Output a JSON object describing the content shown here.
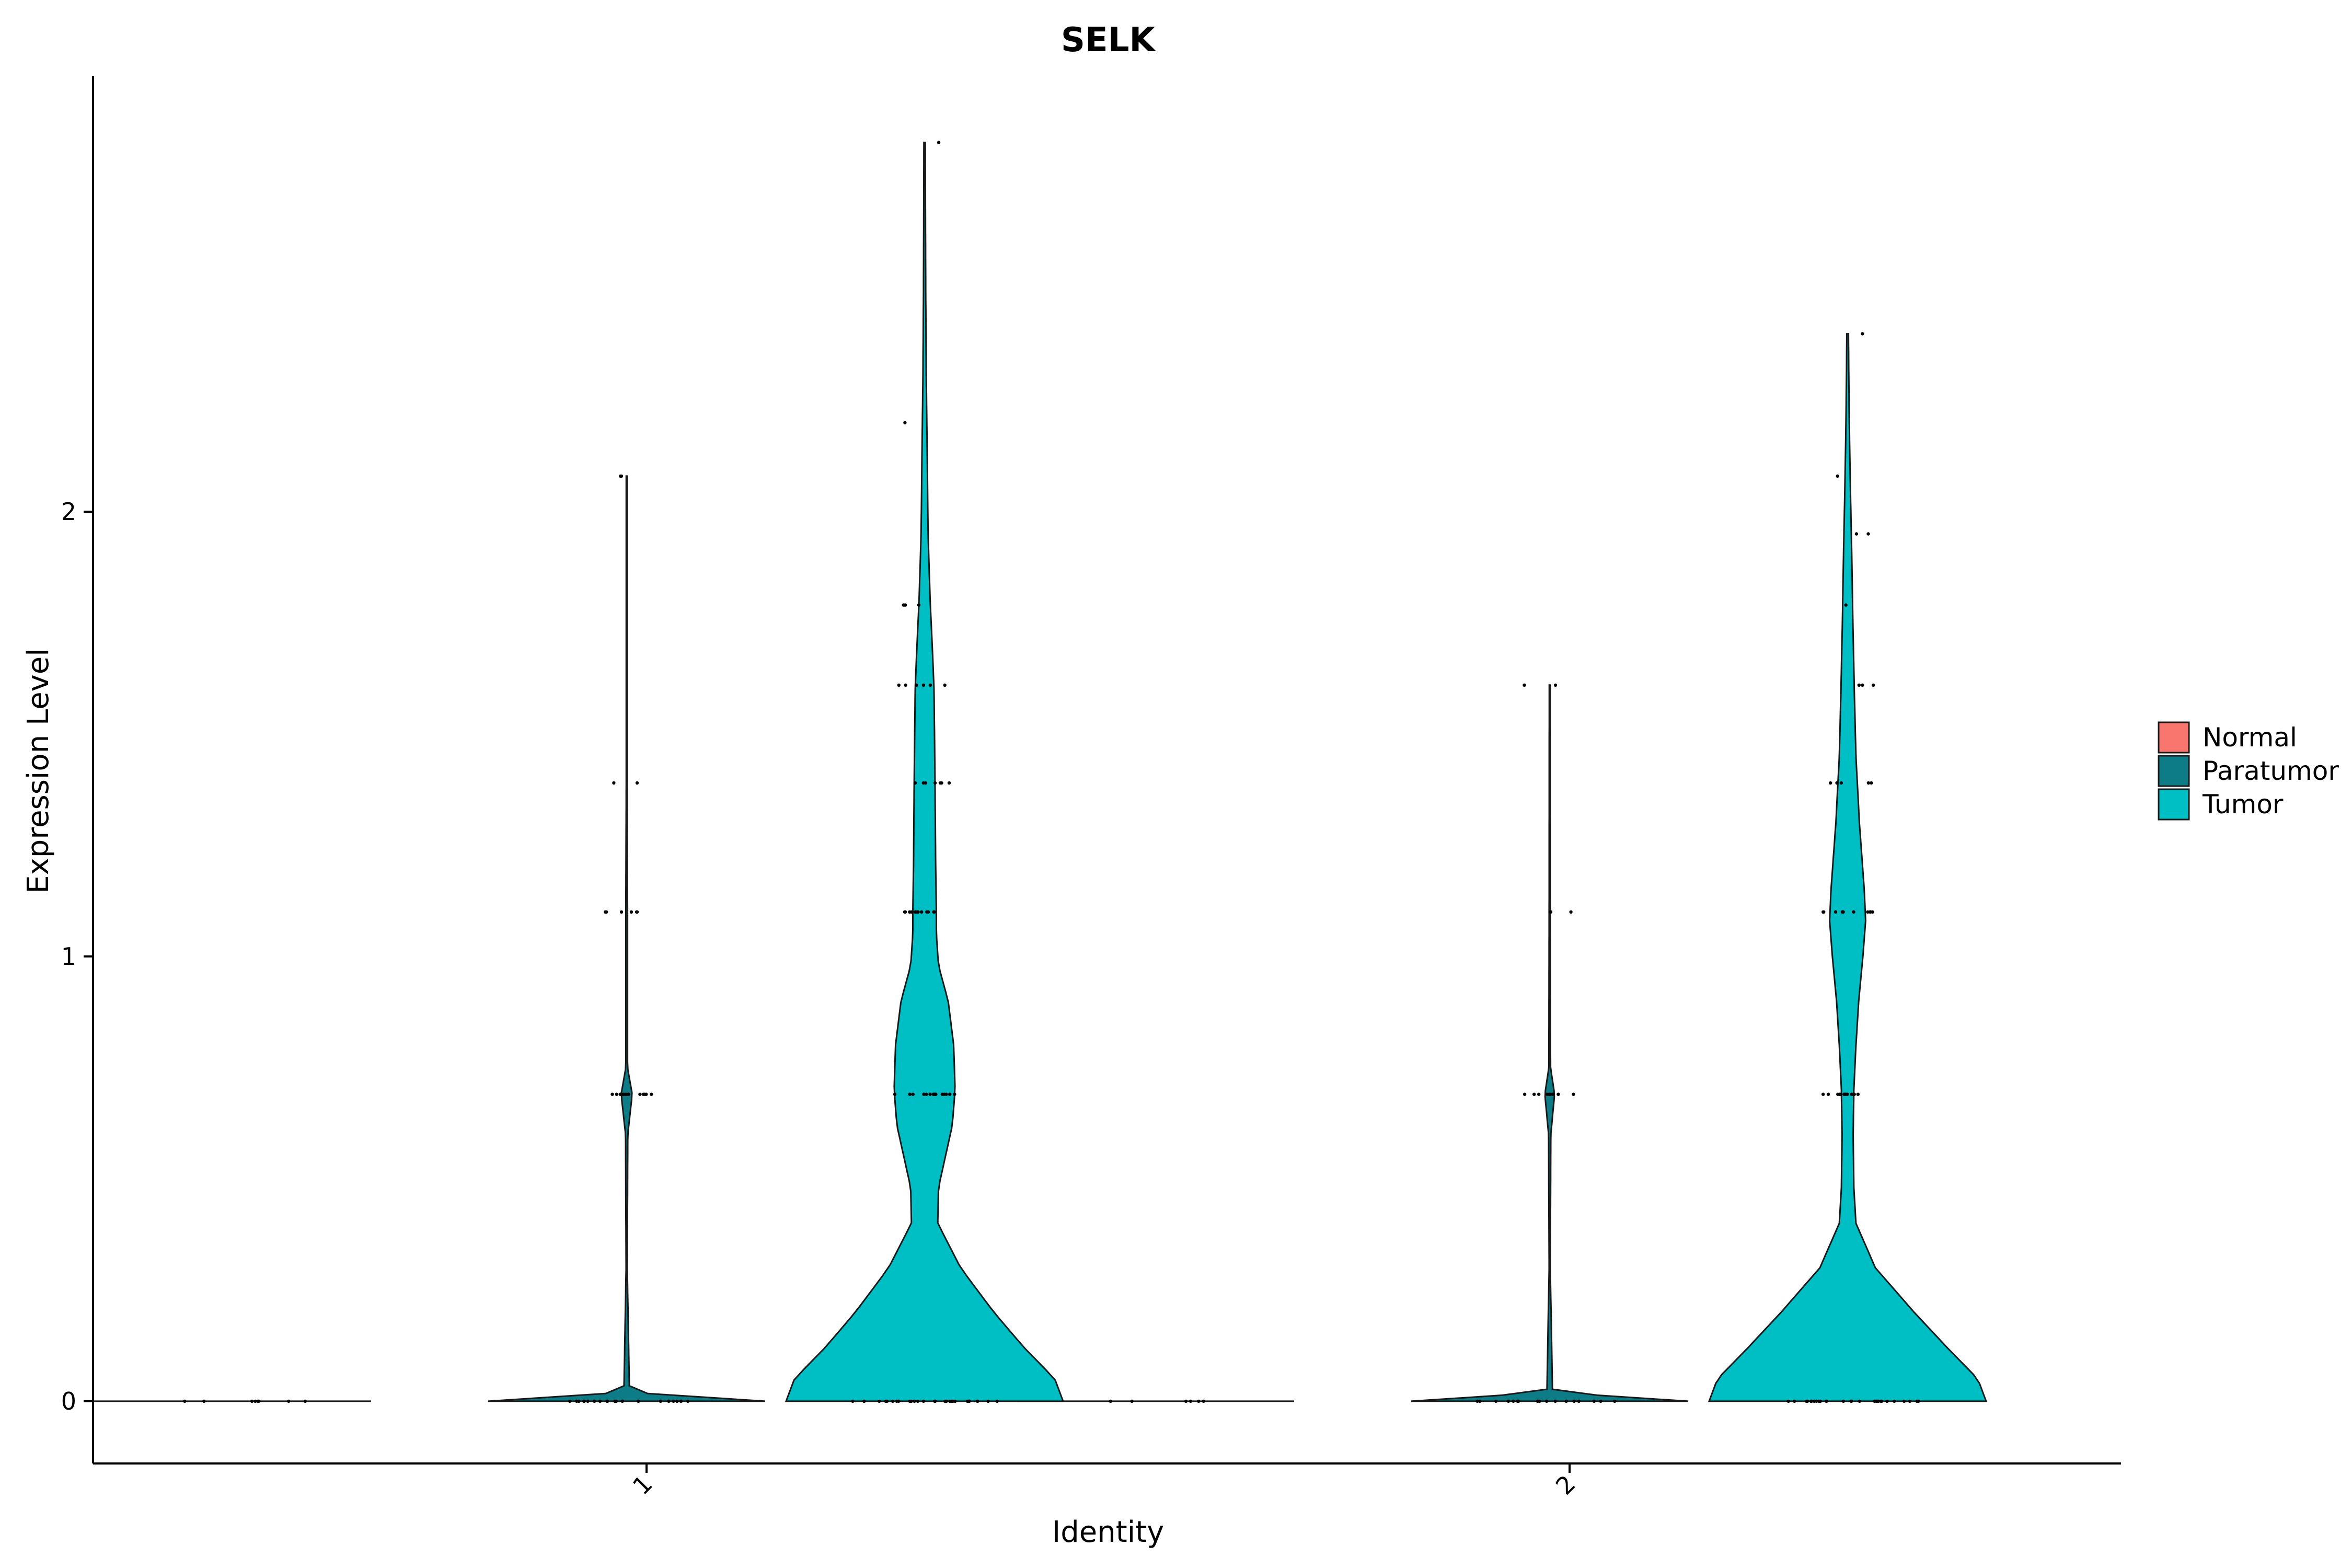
{
  "chart_data": {
    "type": "violin",
    "title": "SELK",
    "xlabel": "Identity",
    "ylabel": "Expression Level",
    "categories": [
      "1",
      "2"
    ],
    "ylim": [
      -0.14,
      2.98
    ],
    "yticks": [
      "0",
      "1",
      "2"
    ],
    "ytick_values": [
      0,
      1,
      2
    ],
    "legend_position": "right",
    "series": [
      {
        "name": "Normal",
        "color": "#F8766D",
        "groups": [
          {
            "category": "1",
            "max": 0,
            "profile": [
              [
                0,
                1.0
              ]
            ],
            "points": [
              0,
              0,
              0,
              0,
              0,
              0,
              0,
              0
            ]
          },
          {
            "category": "2",
            "max": 0,
            "profile": [
              [
                0,
                1.0
              ]
            ],
            "points": [
              0,
              0,
              0,
              0,
              0,
              0
            ]
          }
        ]
      },
      {
        "name": "Paratumor",
        "color": "#0E7C86",
        "groups": [
          {
            "category": "1",
            "max": 2.08,
            "profile": [
              [
                0,
                1.0
              ],
              [
                0.02,
                0.02
              ],
              [
                0.3,
                0.004
              ],
              [
                0.6,
                0.008
              ],
              [
                0.69,
                0.04
              ],
              [
                0.75,
                0.006
              ],
              [
                1.1,
                0.006
              ],
              [
                1.39,
                0.003
              ],
              [
                2.08,
                0.003
              ]
            ],
            "points": [
              0,
              0,
              0,
              0,
              0,
              0,
              0,
              0,
              0,
              0,
              0,
              0,
              0,
              0,
              0,
              0,
              0,
              0,
              0,
              0,
              0.69,
              0.69,
              0.69,
              0.69,
              0.69,
              0.69,
              0.69,
              0.69,
              0.69,
              0.69,
              0.69,
              0.69,
              1.1,
              1.1,
              1.1,
              1.1,
              1.1,
              1.1,
              1.39,
              1.39,
              2.08,
              2.08
            ]
          },
          {
            "category": "2",
            "max": 1.61,
            "profile": [
              [
                0,
                1.0
              ],
              [
                0.02,
                0.02
              ],
              [
                0.3,
                0.004
              ],
              [
                0.6,
                0.008
              ],
              [
                0.69,
                0.035
              ],
              [
                0.75,
                0.006
              ],
              [
                1.1,
                0.004
              ],
              [
                1.61,
                0.003
              ]
            ],
            "points": [
              0,
              0,
              0,
              0,
              0,
              0,
              0,
              0,
              0,
              0,
              0,
              0,
              0,
              0,
              0,
              0,
              0,
              0,
              0.69,
              0.69,
              0.69,
              0.69,
              0.69,
              0.69,
              0.69,
              0.69,
              0.69,
              1.1,
              1.1,
              1.61,
              1.61
            ]
          }
        ]
      },
      {
        "name": "Tumor",
        "color": "#00BFC4",
        "groups": [
          {
            "category": "1",
            "max": 2.83,
            "profile": [
              [
                0,
                1.0
              ],
              [
                0.05,
                0.94
              ],
              [
                0.12,
                0.72
              ],
              [
                0.2,
                0.5
              ],
              [
                0.3,
                0.26
              ],
              [
                0.4,
                0.095
              ],
              [
                0.48,
                0.1
              ],
              [
                0.55,
                0.15
              ],
              [
                0.62,
                0.2
              ],
              [
                0.7,
                0.22
              ],
              [
                0.8,
                0.21
              ],
              [
                0.9,
                0.17
              ],
              [
                0.98,
                0.1
              ],
              [
                1.05,
                0.085
              ],
              [
                1.1,
                0.085
              ],
              [
                1.2,
                0.08
              ],
              [
                1.4,
                0.075
              ],
              [
                1.6,
                0.068
              ],
              [
                1.7,
                0.055
              ],
              [
                1.8,
                0.04
              ],
              [
                1.95,
                0.025
              ],
              [
                2.1,
                0.02
              ],
              [
                2.3,
                0.012
              ],
              [
                2.5,
                0.008
              ],
              [
                2.7,
                0.006
              ],
              [
                2.83,
                0.005
              ]
            ],
            "points": [
              0,
              0,
              0,
              0,
              0,
              0,
              0,
              0,
              0,
              0,
              0,
              0,
              0,
              0,
              0,
              0,
              0,
              0,
              0,
              0,
              0,
              0,
              0,
              0,
              0,
              0,
              0,
              0,
              0,
              0,
              0.69,
              0.69,
              0.69,
              0.69,
              0.69,
              0.69,
              0.69,
              0.69,
              0.69,
              0.69,
              0.69,
              0.69,
              0.69,
              0.69,
              0.69,
              0.69,
              1.1,
              1.1,
              1.1,
              1.1,
              1.1,
              1.1,
              1.1,
              1.1,
              1.1,
              1.1,
              1.1,
              1.1,
              1.1,
              1.39,
              1.39,
              1.39,
              1.39,
              1.39,
              1.39,
              1.39,
              1.61,
              1.61,
              1.61,
              1.61,
              1.61,
              1.61,
              1.79,
              1.79,
              1.79,
              1.79,
              2.2,
              2.83
            ]
          },
          {
            "category": "2",
            "max": 2.4,
            "profile": [
              [
                0,
                1.0
              ],
              [
                0.05,
                0.94
              ],
              [
                0.12,
                0.72
              ],
              [
                0.2,
                0.48
              ],
              [
                0.3,
                0.2
              ],
              [
                0.4,
                0.06
              ],
              [
                0.48,
                0.045
              ],
              [
                0.6,
                0.04
              ],
              [
                0.7,
                0.045
              ],
              [
                0.8,
                0.06
              ],
              [
                0.9,
                0.08
              ],
              [
                1.0,
                0.11
              ],
              [
                1.08,
                0.13
              ],
              [
                1.15,
                0.12
              ],
              [
                1.3,
                0.085
              ],
              [
                1.45,
                0.06
              ],
              [
                1.6,
                0.048
              ],
              [
                1.75,
                0.038
              ],
              [
                1.9,
                0.03
              ],
              [
                2.05,
                0.02
              ],
              [
                2.2,
                0.012
              ],
              [
                2.32,
                0.008
              ],
              [
                2.4,
                0.006
              ]
            ],
            "points": [
              0,
              0,
              0,
              0,
              0,
              0,
              0,
              0,
              0,
              0,
              0,
              0,
              0,
              0,
              0,
              0,
              0,
              0,
              0,
              0,
              0,
              0,
              0,
              0,
              0,
              0,
              0,
              0,
              0.69,
              0.69,
              0.69,
              0.69,
              0.69,
              0.69,
              0.69,
              0.69,
              0.69,
              0.69,
              0.69,
              0.69,
              0.69,
              1.1,
              1.1,
              1.1,
              1.1,
              1.1,
              1.1,
              1.1,
              1.1,
              1.1,
              1.1,
              1.1,
              1.1,
              1.1,
              1.39,
              1.39,
              1.39,
              1.39,
              1.39,
              1.61,
              1.61,
              1.61,
              1.79,
              1.95,
              1.95,
              2.08,
              2.4
            ]
          }
        ]
      }
    ]
  }
}
